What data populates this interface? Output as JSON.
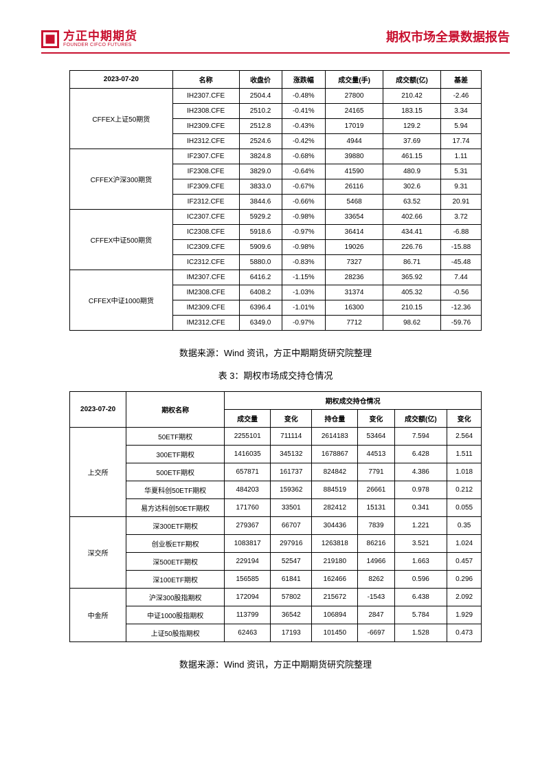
{
  "header": {
    "logo_cn": "方正中期期货",
    "logo_en": "FOUNDER CIFCO FUTURES",
    "title": "期权市场全景数据报告"
  },
  "table1": {
    "date": "2023-07-20",
    "headers": [
      "名称",
      "收盘价",
      "涨跌幅",
      "成交量(手)",
      "成交额(亿)",
      "基差"
    ],
    "groups": [
      {
        "label": "CFFEX上证50期货",
        "rows": [
          [
            "IH2307.CFE",
            "2504.4",
            "-0.48%",
            "27800",
            "210.42",
            "-2.46"
          ],
          [
            "IH2308.CFE",
            "2510.2",
            "-0.41%",
            "24165",
            "183.15",
            "3.34"
          ],
          [
            "IH2309.CFE",
            "2512.8",
            "-0.43%",
            "17019",
            "129.2",
            "5.94"
          ],
          [
            "IH2312.CFE",
            "2524.6",
            "-0.42%",
            "4944",
            "37.69",
            "17.74"
          ]
        ]
      },
      {
        "label": "CFFEX沪深300期货",
        "rows": [
          [
            "IF2307.CFE",
            "3824.8",
            "-0.68%",
            "39880",
            "461.15",
            "1.11"
          ],
          [
            "IF2308.CFE",
            "3829.0",
            "-0.64%",
            "41590",
            "480.9",
            "5.31"
          ],
          [
            "IF2309.CFE",
            "3833.0",
            "-0.67%",
            "26116",
            "302.6",
            "9.31"
          ],
          [
            "IF2312.CFE",
            "3844.6",
            "-0.66%",
            "5468",
            "63.52",
            "20.91"
          ]
        ]
      },
      {
        "label": "CFFEX中证500期货",
        "rows": [
          [
            "IC2307.CFE",
            "5929.2",
            "-0.98%",
            "33654",
            "402.66",
            "3.72"
          ],
          [
            "IC2308.CFE",
            "5918.6",
            "-0.97%",
            "36414",
            "434.41",
            "-6.88"
          ],
          [
            "IC2309.CFE",
            "5909.6",
            "-0.98%",
            "19026",
            "226.76",
            "-15.88"
          ],
          [
            "IC2312.CFE",
            "5880.0",
            "-0.83%",
            "7327",
            "86.71",
            "-45.48"
          ]
        ]
      },
      {
        "label": "CFFEX中证1000期货",
        "rows": [
          [
            "IM2307.CFE",
            "6416.2",
            "-1.15%",
            "28236",
            "365.92",
            "7.44"
          ],
          [
            "IM2308.CFE",
            "6408.2",
            "-1.03%",
            "31374",
            "405.32",
            "-0.56"
          ],
          [
            "IM2309.CFE",
            "6396.4",
            "-1.01%",
            "16300",
            "210.15",
            "-12.36"
          ],
          [
            "IM2312.CFE",
            "6349.0",
            "-0.97%",
            "7712",
            "98.62",
            "-59.76"
          ]
        ]
      }
    ]
  },
  "source_text": "数据来源：Wind 资讯，方正中期期货研究院整理",
  "table2_caption": "表 3：期权市场成交持仓情况",
  "table2": {
    "date": "2023-07-20",
    "name_header": "期权名称",
    "group_header": "期权成交持仓情况",
    "sub_headers": [
      "成交量",
      "变化",
      "持仓量",
      "变化",
      "成交额(亿)",
      "变化"
    ],
    "groups": [
      {
        "label": "上交所",
        "rows": [
          [
            "50ETF期权",
            "2255101",
            "711114",
            "2614183",
            "53464",
            "7.594",
            "2.564"
          ],
          [
            "300ETF期权",
            "1416035",
            "345132",
            "1678867",
            "44513",
            "6.428",
            "1.511"
          ],
          [
            "500ETF期权",
            "657871",
            "161737",
            "824842",
            "7791",
            "4.386",
            "1.018"
          ],
          [
            "华夏科创50ETF期权",
            "484203",
            "159362",
            "884519",
            "26661",
            "0.978",
            "0.212"
          ],
          [
            "易方达科创50ETF期权",
            "171760",
            "33501",
            "282412",
            "15131",
            "0.341",
            "0.055"
          ]
        ]
      },
      {
        "label": "深交所",
        "rows": [
          [
            "深300ETF期权",
            "279367",
            "66707",
            "304436",
            "7839",
            "1.221",
            "0.35"
          ],
          [
            "创业板ETF期权",
            "1083817",
            "297916",
            "1263818",
            "86216",
            "3.521",
            "1.024"
          ],
          [
            "深500ETF期权",
            "229194",
            "52547",
            "219180",
            "14966",
            "1.663",
            "0.457"
          ],
          [
            "深100ETF期权",
            "156585",
            "61841",
            "162466",
            "8262",
            "0.596",
            "0.296"
          ]
        ]
      },
      {
        "label": "中金所",
        "rows": [
          [
            "沪深300股指期权",
            "172094",
            "57802",
            "215672",
            "-1543",
            "6.438",
            "2.092"
          ],
          [
            "中证1000股指期权",
            "113799",
            "36542",
            "106894",
            "2847",
            "5.784",
            "1.929"
          ],
          [
            "上证50股指期权",
            "62463",
            "17193",
            "101450",
            "-6697",
            "1.528",
            "0.473"
          ]
        ]
      }
    ]
  }
}
